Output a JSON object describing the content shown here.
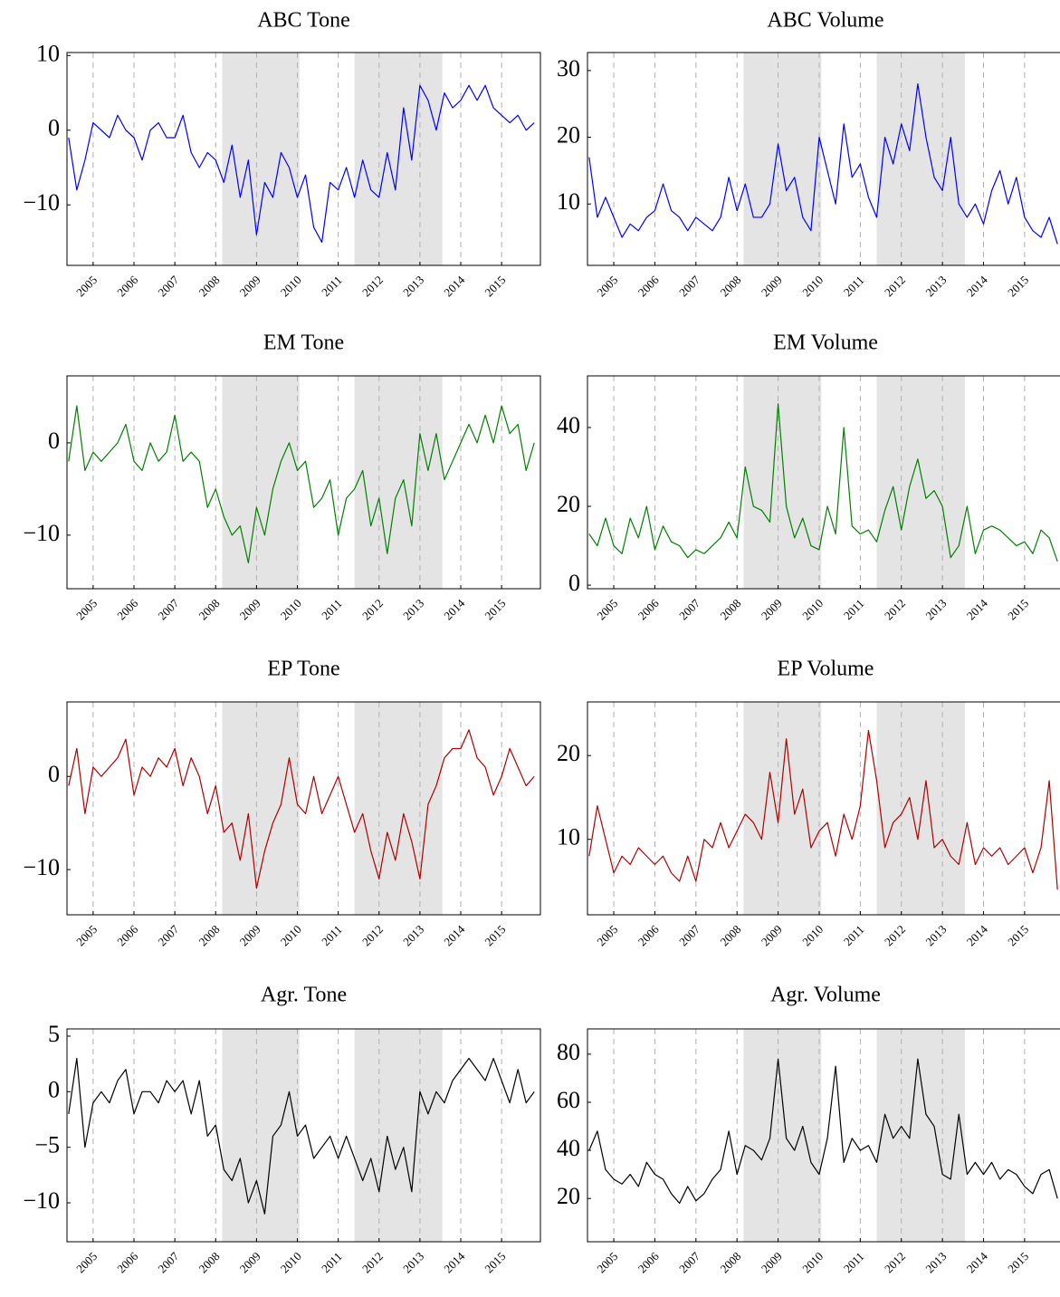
{
  "chart_data": [
    {
      "type": "line",
      "title": "ABC Tone",
      "color": "#0000ff",
      "xlim": [
        2004.36,
        2015.95
      ],
      "ylim": [
        -18.1,
        10.4
      ],
      "xticks": [
        2005,
        2006,
        2007,
        2008,
        2009,
        2010,
        2011,
        2012,
        2013,
        2014,
        2015
      ],
      "yticks": [
        10,
        0,
        {
          "value": -10,
          "label": "−10"
        }
      ],
      "xgrid": true,
      "shaded_regions": [
        [
          2008.16,
          2010.05
        ],
        [
          2011.4,
          2013.55
        ]
      ],
      "x": [
        2004.4,
        2004.6,
        2004.8,
        2005,
        2005.2,
        2005.4,
        2005.6,
        2005.8,
        2006,
        2006.2,
        2006.4,
        2006.6,
        2006.8,
        2007,
        2007.2,
        2007.4,
        2007.6,
        2007.8,
        2008,
        2008.2,
        2008.4,
        2008.6,
        2008.8,
        2009,
        2009.2,
        2009.4,
        2009.6,
        2009.8,
        2010,
        2010.2,
        2010.4,
        2010.6,
        2010.8,
        2011,
        2011.2,
        2011.4,
        2011.6,
        2011.8,
        2012,
        2012.2,
        2012.4,
        2012.6,
        2012.8,
        2013,
        2013.2,
        2013.4,
        2013.6,
        2013.8,
        2014,
        2014.2,
        2014.4,
        2014.6,
        2014.8,
        2015,
        2015.2,
        2015.4,
        2015.6,
        2015.8
      ],
      "values": [
        -1,
        -8,
        -4,
        1,
        0,
        -1,
        2,
        0,
        -1,
        -4,
        0,
        1,
        -1,
        -1,
        2,
        -3,
        -5,
        -3,
        -4,
        -7,
        -2,
        -9,
        -4,
        -14,
        -7,
        -9,
        -3,
        -5,
        -9,
        -6,
        -13,
        -15,
        -7,
        -8,
        -5,
        -9,
        -4,
        -8,
        -9,
        -3,
        -8,
        3,
        -4,
        6,
        4,
        0,
        5,
        3,
        4,
        6,
        4,
        6,
        3,
        2,
        1,
        2,
        0,
        1
      ]
    },
    {
      "type": "line",
      "title": "ABC Volume",
      "color": "#0000ff",
      "xlim": [
        2004.36,
        2015.95
      ],
      "ylim": [
        0.8,
        32.7
      ],
      "xticks": [
        2005,
        2006,
        2007,
        2008,
        2009,
        2010,
        2011,
        2012,
        2013,
        2014,
        2015
      ],
      "yticks": [
        10,
        20,
        30
      ],
      "xgrid": true,
      "shaded_regions": [
        [
          2008.16,
          2010.05
        ],
        [
          2011.4,
          2013.55
        ]
      ],
      "x": [
        2004.4,
        2004.6,
        2004.8,
        2005,
        2005.2,
        2005.4,
        2005.6,
        2005.8,
        2006,
        2006.2,
        2006.4,
        2006.6,
        2006.8,
        2007,
        2007.2,
        2007.4,
        2007.6,
        2007.8,
        2008,
        2008.2,
        2008.4,
        2008.6,
        2008.8,
        2009,
        2009.2,
        2009.4,
        2009.6,
        2009.8,
        2010,
        2010.2,
        2010.4,
        2010.6,
        2010.8,
        2011,
        2011.2,
        2011.4,
        2011.6,
        2011.8,
        2012,
        2012.2,
        2012.4,
        2012.6,
        2012.8,
        2013,
        2013.2,
        2013.4,
        2013.6,
        2013.8,
        2014,
        2014.2,
        2014.4,
        2014.6,
        2014.8,
        2015,
        2015.2,
        2015.4,
        2015.6,
        2015.8
      ],
      "values": [
        17,
        8,
        11,
        8,
        5,
        7,
        6,
        8,
        9,
        13,
        9,
        8,
        6,
        8,
        7,
        6,
        8,
        14,
        9,
        13,
        8,
        8,
        10,
        19,
        12,
        14,
        8,
        6,
        20,
        15,
        10,
        22,
        14,
        16,
        11,
        8,
        20,
        16,
        22,
        18,
        28,
        20,
        14,
        12,
        20,
        10,
        8,
        10,
        7,
        12,
        15,
        10,
        14,
        8,
        6,
        5,
        8,
        4
      ]
    },
    {
      "type": "line",
      "title": "EM Tone",
      "color": "#008000",
      "xlim": [
        2004.36,
        2015.95
      ],
      "ylim": [
        -15.8,
        7.25
      ],
      "xticks": [
        2005,
        2006,
        2007,
        2008,
        2009,
        2010,
        2011,
        2012,
        2013,
        2014,
        2015
      ],
      "yticks": [
        0,
        {
          "value": -10,
          "label": "−10"
        }
      ],
      "xgrid": true,
      "shaded_regions": [
        [
          2008.16,
          2010.05
        ],
        [
          2011.4,
          2013.55
        ]
      ],
      "x": [
        2004.4,
        2004.6,
        2004.8,
        2005,
        2005.2,
        2005.4,
        2005.6,
        2005.8,
        2006,
        2006.2,
        2006.4,
        2006.6,
        2006.8,
        2007,
        2007.2,
        2007.4,
        2007.6,
        2007.8,
        2008,
        2008.2,
        2008.4,
        2008.6,
        2008.8,
        2009,
        2009.2,
        2009.4,
        2009.6,
        2009.8,
        2010,
        2010.2,
        2010.4,
        2010.6,
        2010.8,
        2011,
        2011.2,
        2011.4,
        2011.6,
        2011.8,
        2012,
        2012.2,
        2012.4,
        2012.6,
        2012.8,
        2013,
        2013.2,
        2013.4,
        2013.6,
        2013.8,
        2014,
        2014.2,
        2014.4,
        2014.6,
        2014.8,
        2015,
        2015.2,
        2015.4,
        2015.6,
        2015.8
      ],
      "values": [
        -2,
        4,
        -3,
        -1,
        -2,
        -1,
        0,
        2,
        -2,
        -3,
        0,
        -2,
        -1,
        3,
        -2,
        -1,
        -2,
        -7,
        -5,
        -8,
        -10,
        -9,
        -13,
        -7,
        -10,
        -5,
        -2,
        0,
        -3,
        -2,
        -7,
        -6,
        -4,
        -10,
        -6,
        -5,
        -3,
        -9,
        -6,
        -12,
        -6,
        -4,
        -9,
        1,
        -3,
        1,
        -4,
        -2,
        0,
        2,
        0,
        3,
        0,
        4,
        1,
        2,
        -3,
        0
      ]
    },
    {
      "type": "line",
      "title": "EM Volume",
      "color": "#008000",
      "xlim": [
        2004.36,
        2015.95
      ],
      "ylim": [
        -0.9,
        53.1
      ],
      "xticks": [
        2005,
        2006,
        2007,
        2008,
        2009,
        2010,
        2011,
        2012,
        2013,
        2014,
        2015
      ],
      "yticks": [
        0,
        20,
        40
      ],
      "xgrid": true,
      "shaded_regions": [
        [
          2008.16,
          2010.05
        ],
        [
          2011.4,
          2013.55
        ]
      ],
      "x": [
        2004.4,
        2004.6,
        2004.8,
        2005,
        2005.2,
        2005.4,
        2005.6,
        2005.8,
        2006,
        2006.2,
        2006.4,
        2006.6,
        2006.8,
        2007,
        2007.2,
        2007.4,
        2007.6,
        2007.8,
        2008,
        2008.2,
        2008.4,
        2008.6,
        2008.8,
        2009,
        2009.2,
        2009.4,
        2009.6,
        2009.8,
        2010,
        2010.2,
        2010.4,
        2010.6,
        2010.8,
        2011,
        2011.2,
        2011.4,
        2011.6,
        2011.8,
        2012,
        2012.2,
        2012.4,
        2012.6,
        2012.8,
        2013,
        2013.2,
        2013.4,
        2013.6,
        2013.8,
        2014,
        2014.2,
        2014.4,
        2014.6,
        2014.8,
        2015,
        2015.2,
        2015.4,
        2015.6,
        2015.8
      ],
      "values": [
        13,
        10,
        17,
        10,
        8,
        17,
        12,
        20,
        9,
        15,
        11,
        10,
        7,
        9,
        8,
        10,
        12,
        16,
        12,
        30,
        20,
        19,
        16,
        46,
        20,
        12,
        17,
        10,
        9,
        20,
        13,
        40,
        15,
        13,
        14,
        11,
        19,
        25,
        14,
        25,
        32,
        22,
        24,
        20,
        7,
        10,
        20,
        8,
        14,
        15,
        14,
        12,
        10,
        11,
        8,
        14,
        12,
        6
      ]
    },
    {
      "type": "line",
      "title": "EP Tone",
      "color": "#b00000",
      "xlim": [
        2004.36,
        2015.95
      ],
      "ylim": [
        -14.85,
        8.0
      ],
      "xticks": [
        2005,
        2006,
        2007,
        2008,
        2009,
        2010,
        2011,
        2012,
        2013,
        2014,
        2015
      ],
      "yticks": [
        0,
        {
          "value": -10,
          "label": "−10"
        }
      ],
      "xgrid": true,
      "shaded_regions": [
        [
          2008.16,
          2010.05
        ],
        [
          2011.4,
          2013.55
        ]
      ],
      "x": [
        2004.4,
        2004.6,
        2004.8,
        2005,
        2005.2,
        2005.4,
        2005.6,
        2005.8,
        2006,
        2006.2,
        2006.4,
        2006.6,
        2006.8,
        2007,
        2007.2,
        2007.4,
        2007.6,
        2007.8,
        2008,
        2008.2,
        2008.4,
        2008.6,
        2008.8,
        2009,
        2009.2,
        2009.4,
        2009.6,
        2009.8,
        2010,
        2010.2,
        2010.4,
        2010.6,
        2010.8,
        2011,
        2011.2,
        2011.4,
        2011.6,
        2011.8,
        2012,
        2012.2,
        2012.4,
        2012.6,
        2012.8,
        2013,
        2013.2,
        2013.4,
        2013.6,
        2013.8,
        2014,
        2014.2,
        2014.4,
        2014.6,
        2014.8,
        2015,
        2015.2,
        2015.4,
        2015.6,
        2015.8
      ],
      "values": [
        -1,
        3,
        -4,
        1,
        0,
        1,
        2,
        4,
        -2,
        1,
        0,
        2,
        1,
        3,
        -1,
        2,
        0,
        -4,
        -1,
        -6,
        -5,
        -9,
        -4,
        -12,
        -8,
        -5,
        -3,
        2,
        -3,
        -4,
        0,
        -4,
        -2,
        0,
        -3,
        -6,
        -4,
        -8,
        -11,
        -6,
        -9,
        -4,
        -7,
        -11,
        -3,
        -1,
        2,
        3,
        3,
        5,
        2,
        1,
        -2,
        0,
        3,
        1,
        -1,
        0
      ]
    },
    {
      "type": "line",
      "title": "EP Volume",
      "color": "#b00000",
      "xlim": [
        2004.36,
        2015.95
      ],
      "ylim": [
        1.0,
        26.4
      ],
      "xticks": [
        2005,
        2006,
        2007,
        2008,
        2009,
        2010,
        2011,
        2012,
        2013,
        2014,
        2015
      ],
      "yticks": [
        10,
        20
      ],
      "xgrid": true,
      "shaded_regions": [
        [
          2008.16,
          2010.05
        ],
        [
          2011.4,
          2013.55
        ]
      ],
      "x": [
        2004.4,
        2004.6,
        2004.8,
        2005,
        2005.2,
        2005.4,
        2005.6,
        2005.8,
        2006,
        2006.2,
        2006.4,
        2006.6,
        2006.8,
        2007,
        2007.2,
        2007.4,
        2007.6,
        2007.8,
        2008,
        2008.2,
        2008.4,
        2008.6,
        2008.8,
        2009,
        2009.2,
        2009.4,
        2009.6,
        2009.8,
        2010,
        2010.2,
        2010.4,
        2010.6,
        2010.8,
        2011,
        2011.2,
        2011.4,
        2011.6,
        2011.8,
        2012,
        2012.2,
        2012.4,
        2012.6,
        2012.8,
        2013,
        2013.2,
        2013.4,
        2013.6,
        2013.8,
        2014,
        2014.2,
        2014.4,
        2014.6,
        2014.8,
        2015,
        2015.2,
        2015.4,
        2015.6,
        2015.8
      ],
      "values": [
        8,
        14,
        10,
        6,
        8,
        7,
        9,
        8,
        7,
        8,
        6,
        5,
        8,
        5,
        10,
        9,
        12,
        9,
        11,
        13,
        12,
        10,
        18,
        12,
        22,
        13,
        16,
        9,
        11,
        12,
        8,
        13,
        10,
        14,
        23,
        17,
        9,
        12,
        13,
        15,
        10,
        17,
        9,
        10,
        8,
        7,
        12,
        7,
        9,
        8,
        9,
        7,
        8,
        9,
        6,
        9,
        17,
        4
      ]
    },
    {
      "type": "line",
      "title": "Agr. Tone",
      "color": "#000000",
      "xlim": [
        2004.36,
        2015.95
      ],
      "ylim": [
        -13.5,
        5.65
      ],
      "xticks": [
        2005,
        2006,
        2007,
        2008,
        2009,
        2010,
        2011,
        2012,
        2013,
        2014,
        2015
      ],
      "yticks": [
        5,
        0,
        {
          "value": -5,
          "label": "−5"
        },
        {
          "value": -10,
          "label": "−10"
        }
      ],
      "xgrid": true,
      "shaded_regions": [
        [
          2008.16,
          2010.05
        ],
        [
          2011.4,
          2013.55
        ]
      ],
      "x": [
        2004.4,
        2004.6,
        2004.8,
        2005,
        2005.2,
        2005.4,
        2005.6,
        2005.8,
        2006,
        2006.2,
        2006.4,
        2006.6,
        2006.8,
        2007,
        2007.2,
        2007.4,
        2007.6,
        2007.8,
        2008,
        2008.2,
        2008.4,
        2008.6,
        2008.8,
        2009,
        2009.2,
        2009.4,
        2009.6,
        2009.8,
        2010,
        2010.2,
        2010.4,
        2010.6,
        2010.8,
        2011,
        2011.2,
        2011.4,
        2011.6,
        2011.8,
        2012,
        2012.2,
        2012.4,
        2012.6,
        2012.8,
        2013,
        2013.2,
        2013.4,
        2013.6,
        2013.8,
        2014,
        2014.2,
        2014.4,
        2014.6,
        2014.8,
        2015,
        2015.2,
        2015.4,
        2015.6,
        2015.8
      ],
      "values": [
        -2,
        3,
        -5,
        -1,
        0,
        -1,
        1,
        2,
        -2,
        0,
        0,
        -1,
        1,
        0,
        1,
        -2,
        1,
        -4,
        -3,
        -7,
        -8,
        -6,
        -10,
        -8,
        -11,
        -4,
        -3,
        0,
        -4,
        -3,
        -6,
        -5,
        -4,
        -6,
        -4,
        -6,
        -8,
        -6,
        -9,
        -4,
        -7,
        -5,
        -9,
        0,
        -2,
        0,
        -1,
        1,
        2,
        3,
        2,
        1,
        3,
        1,
        -1,
        2,
        -1,
        0
      ]
    },
    {
      "type": "line",
      "title": "Agr. Volume",
      "color": "#000000",
      "xlim": [
        2004.36,
        2015.95
      ],
      "ylim": [
        2,
        90.5
      ],
      "xticks": [
        2005,
        2006,
        2007,
        2008,
        2009,
        2010,
        2011,
        2012,
        2013,
        2014,
        2015
      ],
      "yticks": [
        20,
        40,
        60,
        80
      ],
      "xgrid": true,
      "shaded_regions": [
        [
          2008.16,
          2010.05
        ],
        [
          2011.4,
          2013.55
        ]
      ],
      "x": [
        2004.4,
        2004.6,
        2004.8,
        2005,
        2005.2,
        2005.4,
        2005.6,
        2005.8,
        2006,
        2006.2,
        2006.4,
        2006.6,
        2006.8,
        2007,
        2007.2,
        2007.4,
        2007.6,
        2007.8,
        2008,
        2008.2,
        2008.4,
        2008.6,
        2008.8,
        2009,
        2009.2,
        2009.4,
        2009.6,
        2009.8,
        2010,
        2010.2,
        2010.4,
        2010.6,
        2010.8,
        2011,
        2011.2,
        2011.4,
        2011.6,
        2011.8,
        2012,
        2012.2,
        2012.4,
        2012.6,
        2012.8,
        2013,
        2013.2,
        2013.4,
        2013.6,
        2013.8,
        2014,
        2014.2,
        2014.4,
        2014.6,
        2014.8,
        2015,
        2015.2,
        2015.4,
        2015.6,
        2015.8
      ],
      "values": [
        40,
        48,
        32,
        28,
        26,
        30,
        25,
        35,
        30,
        28,
        22,
        18,
        25,
        19,
        22,
        28,
        32,
        48,
        30,
        42,
        40,
        36,
        45,
        78,
        45,
        40,
        50,
        35,
        30,
        45,
        75,
        35,
        45,
        40,
        42,
        35,
        55,
        45,
        50,
        45,
        78,
        55,
        50,
        30,
        28,
        55,
        30,
        35,
        30,
        35,
        28,
        32,
        30,
        25,
        22,
        30,
        32,
        20
      ]
    }
  ]
}
